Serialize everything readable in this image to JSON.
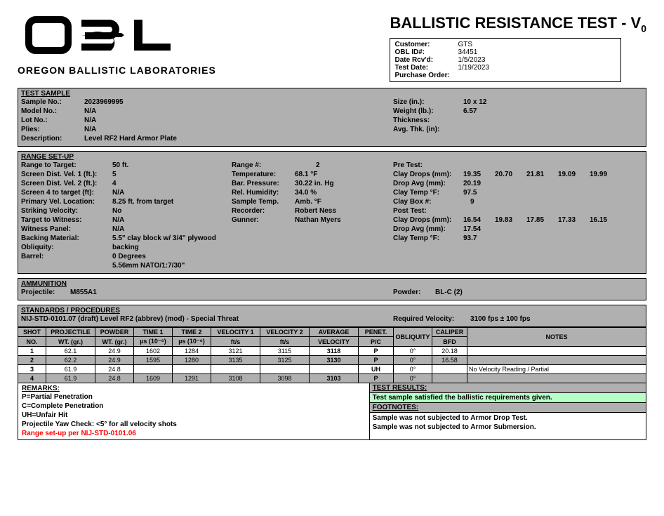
{
  "logo": {
    "sub": "OREGON BALLISTIC LABORATORIES"
  },
  "title": {
    "main": "BALLISTIC RESISTANCE TEST - V",
    "sub": "0"
  },
  "info": {
    "customer_lbl": "Customer:",
    "customer": "GTS",
    "oblid_lbl": "OBL ID#:",
    "oblid": "34451",
    "rcvd_lbl": "Date Rcv'd:",
    "rcvd": "1/5/2023",
    "testdate_lbl": "Test Date:",
    "testdate": "1/19/2023",
    "po_lbl": "Purchase Order:",
    "po": ""
  },
  "sample": {
    "title": "TEST SAMPLE",
    "no_lbl": "Sample No.:",
    "no": "2023969995",
    "model_lbl": "Model No.:",
    "model": "N/A",
    "lot_lbl": "Lot No.:",
    "lot": "N/A",
    "plies_lbl": "Plies:",
    "plies": "N/A",
    "desc_lbl": "Description:",
    "desc": "Level RF2 Hard Armor Plate",
    "size_lbl": "Size (in.):",
    "size": "10 x 12",
    "wt_lbl": "Weight (lb.):",
    "wt": "6.57",
    "thk_lbl": "Thickness:",
    "thk": "",
    "avg_lbl": "Avg. Thk. (in):",
    "avg": ""
  },
  "range": {
    "title": "RANGE SET-UP",
    "rt_lbl": "Range to Target:",
    "rt": "50 ft.",
    "sd1_lbl": "Screen Dist. Vel. 1 (ft.):",
    "sd1": "5",
    "sd2_lbl": "Screen Dist. Vel. 2 (ft.):",
    "sd2": "4",
    "s4_lbl": "Screen 4 to target (ft):",
    "s4": "N/A",
    "pvl_lbl": "Primary Vel. Location:",
    "pvl": "8.25 ft. from target",
    "sv_lbl": "Striking Velocity:",
    "sv": "No",
    "ttw_lbl": "Target to Witness:",
    "ttw": "N/A",
    "wp_lbl": "Witness Panel:",
    "wp": "N/A",
    "bm_lbl": "Backing Material:",
    "bm": "5.5\" clay block w/ 3/4\" plywood backing",
    "obl_lbl": "Obliquity:",
    "obl": "0 Degrees",
    "bar_lbl": "Barrel:",
    "bar": "5.56mm NATO/1:7/30\"",
    "rn_lbl": "Range #:",
    "rn": "2",
    "temp_lbl": "Temperature:",
    "temp": "68.1  °F",
    "bp_lbl": "Bar. Pressure:",
    "bp": "30.22  in. Hg",
    "rh_lbl": "Rel. Humidity:",
    "rh": "34.0   %",
    "st_lbl": "Sample Temp.",
    "st": "Amb.  °F",
    "rec_lbl": "Recorder:",
    "rec": "Robert Ness",
    "gun_lbl": "Gunner:",
    "gun": "Nathan Myers",
    "pre_lbl": "Pre Test:",
    "cd_lbl": "Clay Drops (mm):",
    "cd": "19.35",
    "cd2": "20.70",
    "cd3": "21.81",
    "cd4": "19.09",
    "cd5": "19.99",
    "da_lbl": "Drop Avg (mm):",
    "da": "20.19",
    "ct_lbl": "Clay Temp °F:",
    "ct": "97.5",
    "cb_lbl": "Clay Box #:",
    "cb": "9",
    "post_lbl": "Post Test:",
    "pcd": "16.54",
    "pcd2": "19.83",
    "pcd3": "17.85",
    "pcd4": "17.33",
    "pcd5": "16.15",
    "pda": "17.54",
    "pct": "93.7"
  },
  "ammo": {
    "title": "AMMUNITION",
    "proj_lbl": "Projectile:",
    "proj": "M855A1",
    "pow_lbl": "Powder:",
    "pow": "BL-C (2)"
  },
  "std": {
    "title": "STANDARDS / PROCEDURES",
    "text": "NIJ-STD-0101.07 (draft) Level RF2 (abbrev) (mod) - Special Threat",
    "rv_lbl": "Required Velocity:",
    "rv": "3100  fps  ±   100   fps"
  },
  "table": {
    "h": {
      "shot": "SHOT",
      "shot2": "NO.",
      "proj": "PROJECTILE",
      "proj2": "WT. (gr.)",
      "pow": "POWDER",
      "pow2": "WT. (gr.)",
      "t1": "TIME 1",
      "t12": "µs (10⁻⁶)",
      "t2": "TIME 2",
      "t22": "µs (10⁻⁶)",
      "v1": "VELOCITY 1",
      "v12": "ft/s",
      "v2": "VELOCITY 2",
      "v22": "ft/s",
      "av": "AVERAGE",
      "av2": "VELOCITY",
      "pen": "PENET.",
      "pen2": "P/C",
      "obq": "OBLIQUITY",
      "cal": "CALIPER",
      "cal2": "BFD",
      "notes": "NOTES"
    },
    "rows": [
      {
        "n": "1",
        "pw": "62.1",
        "pow": "24.9",
        "t1": "1602",
        "t2": "1284",
        "v1": "3121",
        "v2": "3115",
        "av": "3118",
        "pen": "P",
        "ob": "0°",
        "cal": "20.18",
        "note": ""
      },
      {
        "n": "2",
        "pw": "62.2",
        "pow": "24.9",
        "t1": "1595",
        "t2": "1280",
        "v1": "3135",
        "v2": "3125",
        "av": "3130",
        "pen": "P",
        "ob": "0°",
        "cal": "16.58",
        "note": ""
      },
      {
        "n": "3",
        "pw": "61.9",
        "pow": "24.8",
        "t1": "",
        "t2": "",
        "v1": "",
        "v2": "",
        "av": "",
        "pen": "UH",
        "ob": "0°",
        "cal": "",
        "note": "No Velocity Reading / Partial"
      },
      {
        "n": "4",
        "pw": "61.9",
        "pow": "24.8",
        "t1": "1609",
        "t2": "1291",
        "v1": "3108",
        "v2": "3098",
        "av": "3103",
        "pen": "P",
        "ob": "0°",
        "cal": "",
        "note": ""
      }
    ]
  },
  "remarks": {
    "title": "REMARKS:",
    "p": "P=Partial Penetration",
    "c": "C=Complete Penetration",
    "uh": "UH=Unfair Hit",
    "yaw": "Projectile Yaw Check: <5° for all velocity shots",
    "rng": "Range set-up per NIJ-STD-0101.06"
  },
  "results": {
    "title": "TEST RESULTS:",
    "pass": "Test sample satisfied the ballistic requirements given.",
    "fn_title": "FOOTNOTES:",
    "fn1": "Sample was not subjected to Armor Drop Test.",
    "fn2": "Sample was not subjected to Armor Submersion."
  }
}
